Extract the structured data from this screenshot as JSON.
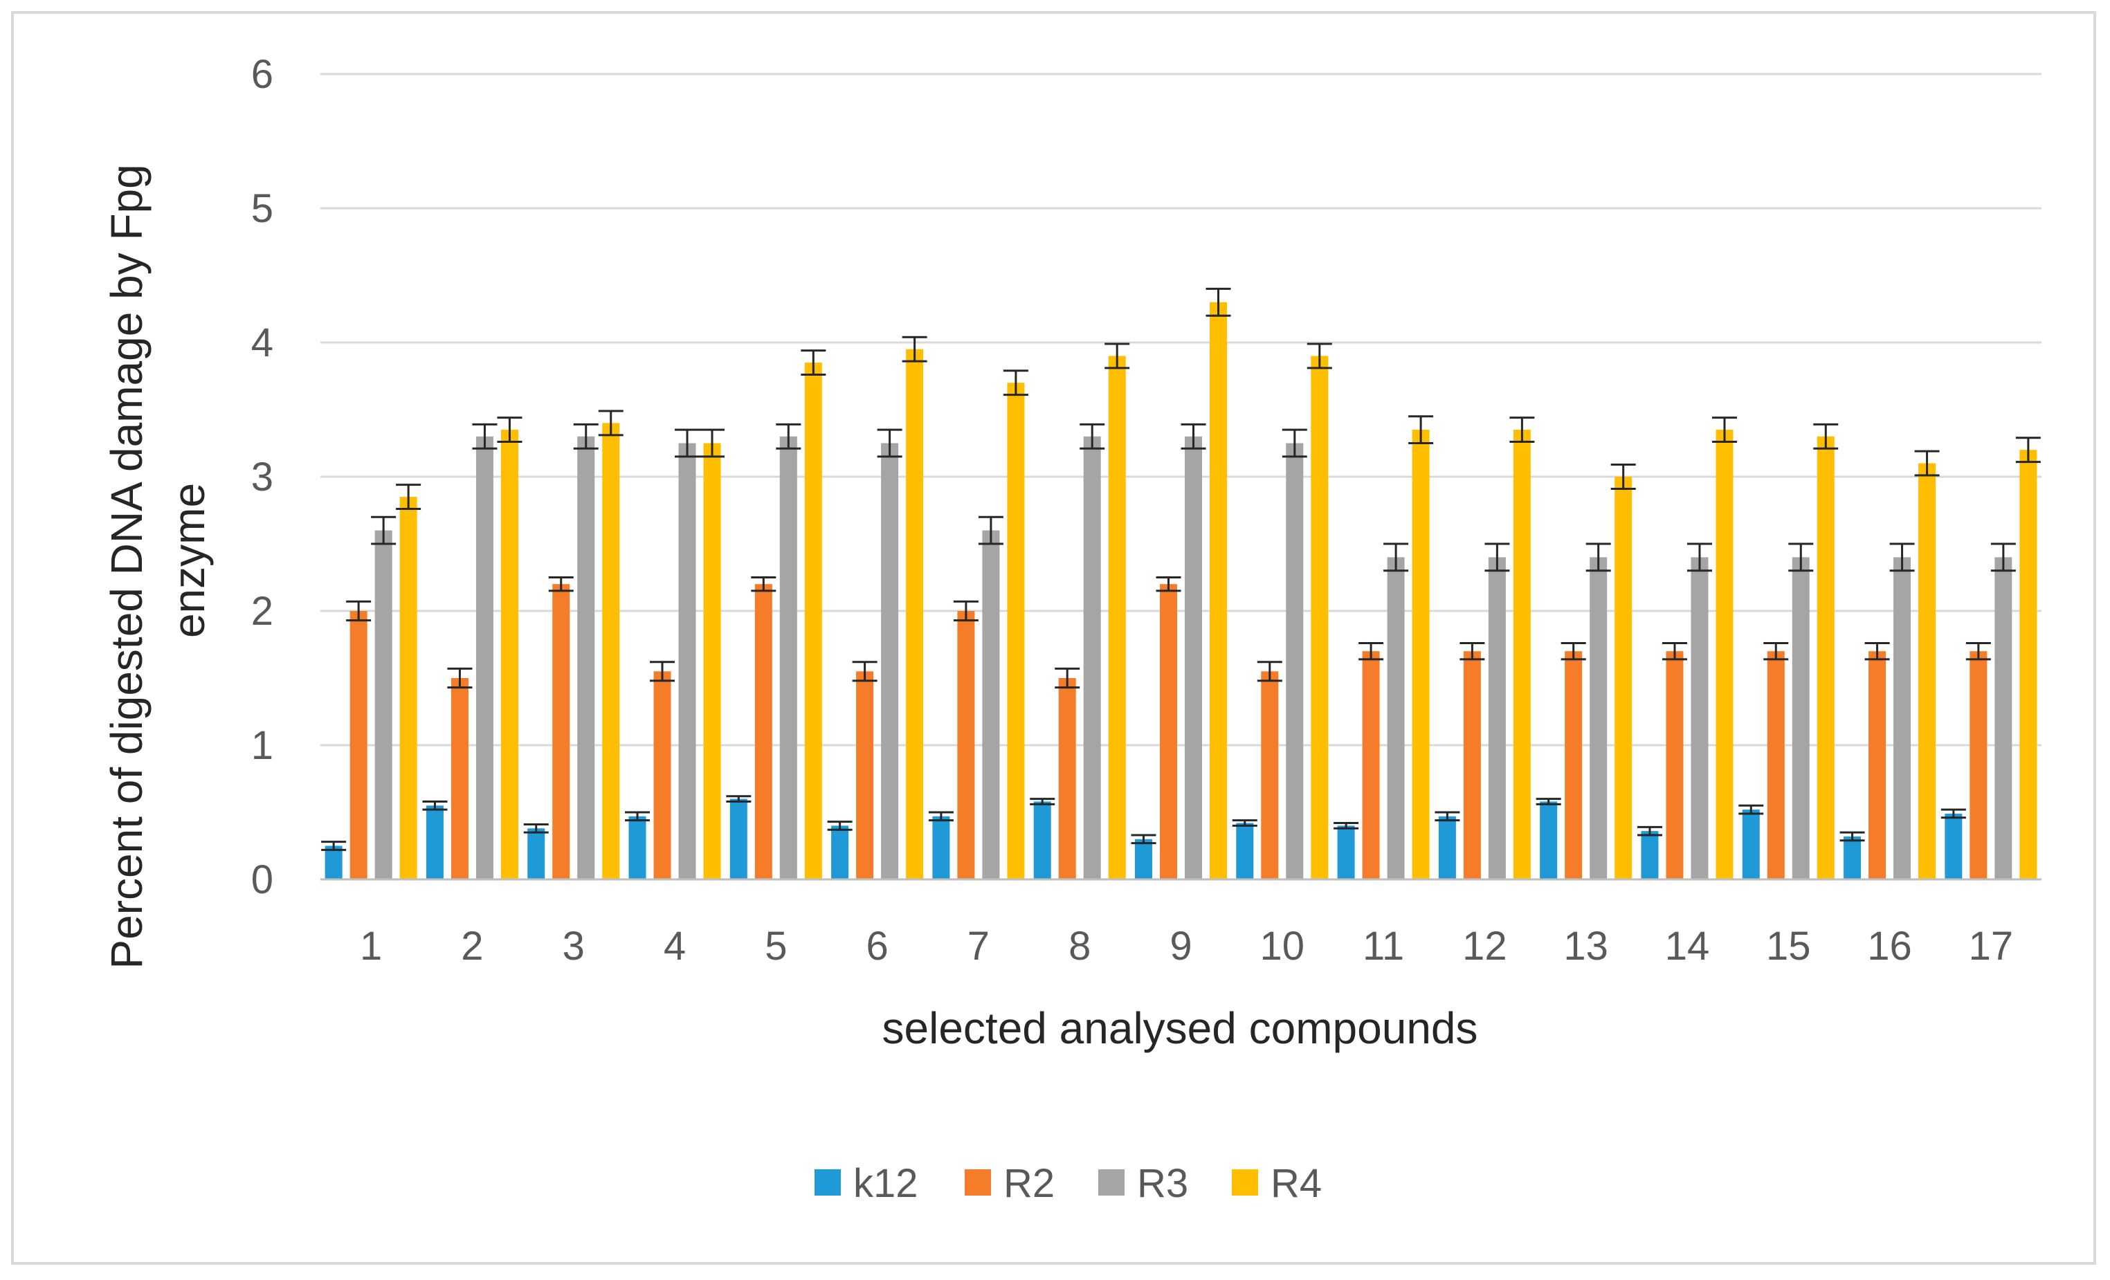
{
  "chart_data": {
    "type": "bar",
    "title": "",
    "xlabel": "selected analysed compounds",
    "ylabel_lines": [
      "Percent of digested DNA damage by Fpg",
      "enzyme"
    ],
    "ylim": [
      0,
      6
    ],
    "yticks": [
      0,
      1,
      2,
      3,
      4,
      5,
      6
    ],
    "grid": true,
    "legend_position": "bottom",
    "categories": [
      "1",
      "2",
      "3",
      "4",
      "5",
      "6",
      "7",
      "8",
      "9",
      "10",
      "11",
      "12",
      "13",
      "14",
      "15",
      "16",
      "17"
    ],
    "series": [
      {
        "name": "k12",
        "color": "#1f9ad6",
        "values": [
          0.25,
          0.55,
          0.38,
          0.47,
          0.6,
          0.4,
          0.47,
          0.58,
          0.3,
          0.42,
          0.4,
          0.47,
          0.58,
          0.36,
          0.52,
          0.32,
          0.49
        ],
        "errors": [
          0.03,
          0.03,
          0.03,
          0.03,
          0.02,
          0.03,
          0.03,
          0.02,
          0.03,
          0.02,
          0.02,
          0.03,
          0.02,
          0.03,
          0.03,
          0.03,
          0.03
        ]
      },
      {
        "name": "R2",
        "color": "#f57c29",
        "values": [
          2.0,
          1.5,
          2.2,
          1.55,
          2.2,
          1.55,
          2.0,
          1.5,
          2.2,
          1.55,
          1.7,
          1.7,
          1.7,
          1.7,
          1.7,
          1.7,
          1.7
        ],
        "errors": [
          0.07,
          0.07,
          0.05,
          0.07,
          0.05,
          0.07,
          0.07,
          0.07,
          0.05,
          0.07,
          0.06,
          0.06,
          0.06,
          0.06,
          0.06,
          0.06,
          0.06
        ]
      },
      {
        "name": "R3",
        "color": "#a5a5a5",
        "values": [
          2.6,
          3.3,
          3.3,
          3.25,
          3.3,
          3.25,
          2.6,
          3.3,
          3.3,
          3.25,
          2.4,
          2.4,
          2.4,
          2.4,
          2.4,
          2.4,
          2.4
        ],
        "errors": [
          0.1,
          0.09,
          0.09,
          0.1,
          0.09,
          0.1,
          0.1,
          0.09,
          0.09,
          0.1,
          0.1,
          0.1,
          0.1,
          0.1,
          0.1,
          0.1,
          0.1
        ]
      },
      {
        "name": "R4",
        "color": "#ffbf00",
        "values": [
          2.85,
          3.35,
          3.4,
          3.25,
          3.85,
          3.95,
          3.7,
          3.9,
          4.3,
          3.9,
          3.35,
          3.35,
          3.0,
          3.35,
          3.3,
          3.1,
          3.2
        ],
        "errors": [
          0.09,
          0.09,
          0.09,
          0.1,
          0.09,
          0.09,
          0.09,
          0.09,
          0.1,
          0.09,
          0.1,
          0.09,
          0.09,
          0.09,
          0.09,
          0.09,
          0.09
        ]
      }
    ]
  }
}
